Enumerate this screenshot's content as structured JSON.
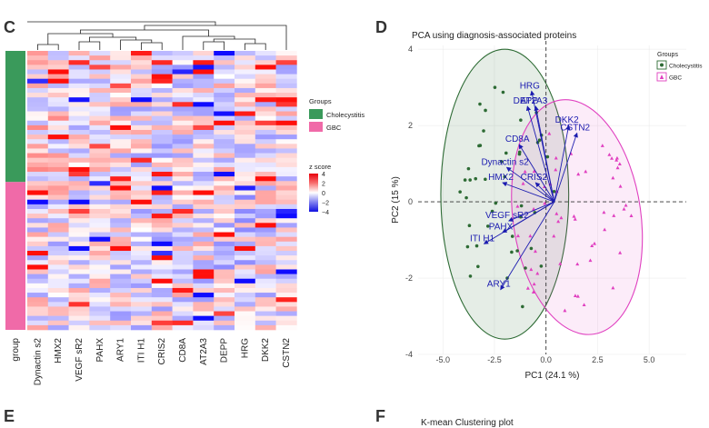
{
  "panels": {
    "c_label": "C",
    "d_label": "D",
    "e_label": "E",
    "f_label": "F"
  },
  "heatmap": {
    "columns": [
      "group",
      "Dynactin s2",
      "HMX2",
      "VEGF sR2",
      "PAHX",
      "ARY1",
      "ITI H1",
      "CRIS2",
      "CD8A",
      "AT2A3",
      "DEPP",
      "HRG",
      "DKK2",
      "CSTN2"
    ],
    "legend_groups_title": "Groups",
    "groups": [
      {
        "name": "Cholecystitis",
        "color": "#3a9a5b"
      },
      {
        "name": "GBC",
        "color": "#f06aa8"
      }
    ],
    "zscore_title": "z score",
    "zscore_ticks": [
      "4",
      "2",
      "0",
      "−2",
      "−4"
    ]
  },
  "pca": {
    "title": "PCA using diagnosis-associated proteins",
    "xlabel": "PC1 (24.1 %)",
    "ylabel": "PC2 (15 %)",
    "x_ticks": [
      "-5.0",
      "-2.5",
      "0.0",
      "2.5",
      "5.0"
    ],
    "y_ticks": [
      "4",
      "2",
      "0",
      "-2",
      "-4"
    ],
    "legend_title": "Groups",
    "legend_items": [
      "Cholecystitis",
      "GBC"
    ],
    "loadings": [
      {
        "name": "HRG",
        "x": -0.7,
        "y": 2.9
      },
      {
        "name": "DEPP",
        "x": -0.9,
        "y": 2.5
      },
      {
        "name": "AT2A3",
        "x": -0.5,
        "y": 2.5
      },
      {
        "name": "DKK2",
        "x": 1.1,
        "y": 2.0
      },
      {
        "name": "CSTN2",
        "x": 1.5,
        "y": 1.8
      },
      {
        "name": "CD8A",
        "x": -1.3,
        "y": 1.5
      },
      {
        "name": "Dynactin s2",
        "x": -1.9,
        "y": 0.9
      },
      {
        "name": "HMX2",
        "x": -2.1,
        "y": 0.5
      },
      {
        "name": "CRIS2",
        "x": -0.5,
        "y": 0.5
      },
      {
        "name": "VEGF sR2",
        "x": -1.8,
        "y": -0.5
      },
      {
        "name": "PAHX",
        "x": -2.1,
        "y": -0.8
      },
      {
        "name": "ITI H1",
        "x": -3.0,
        "y": -1.1
      },
      {
        "name": "ARY1",
        "x": -2.2,
        "y": -2.3
      }
    ]
  },
  "panel_f": {
    "title": "K-mean Clustering plot"
  },
  "colors": {
    "green": "#2d6b34",
    "pink": "#e040c0",
    "arrow": "#1c1cb0",
    "heat_high": "#e8000b",
    "heat_low": "#1010e0"
  }
}
